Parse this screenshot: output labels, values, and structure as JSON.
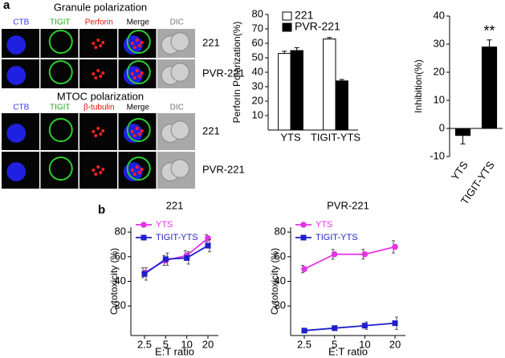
{
  "panel_labels": [
    "a",
    "b"
  ],
  "micrographs": [
    {
      "title": "Granule polarization",
      "columns": [
        "CTB",
        "TIGIT",
        "Perforin",
        "Merge",
        "DIC"
      ],
      "rows": [
        "221",
        "PVR-221"
      ]
    },
    {
      "title": "MTOC polarization",
      "columns": [
        "CTB",
        "TIGIT",
        "β-tubulin",
        "Merge",
        "DIC"
      ],
      "rows": [
        "221",
        "PVR-221"
      ]
    }
  ],
  "chart_data": [
    {
      "type": "bar",
      "y_label": "Perforin Polarization(%)",
      "categories": [
        "YTS",
        "TIGIT-YTS"
      ],
      "series": [
        {
          "name": "221",
          "color": "#ffffff",
          "values": [
            53,
            63
          ],
          "errors": [
            1.5,
            1
          ]
        },
        {
          "name": "PVR-221",
          "color": "#000000",
          "values": [
            55,
            34
          ],
          "errors": [
            2,
            1
          ]
        }
      ],
      "ylim": [
        0,
        80
      ],
      "yticks": [
        10,
        20,
        30,
        40,
        50,
        60,
        70,
        80
      ],
      "legend": "upper left"
    },
    {
      "type": "bar",
      "y_label": "Inhibition(%)",
      "categories": [
        "YTS",
        "TIGIT-YTS"
      ],
      "series": [
        {
          "color": "#000000",
          "values": [
            -2.5,
            29
          ],
          "errors": [
            3,
            2.5
          ]
        }
      ],
      "annotation": "**",
      "ylim": [
        -10,
        40
      ],
      "yticks": [
        -10,
        0,
        10,
        20,
        30,
        40
      ]
    },
    {
      "type": "line",
      "title": "221",
      "x_label": "E:T ratio",
      "y_label": "Cytotoxicity (%)",
      "categories": [
        "2.5",
        "5",
        "10",
        "20"
      ],
      "series": [
        {
          "name": "YTS",
          "color": "#e633e6",
          "marker": "circle",
          "values": [
            47,
            57,
            61,
            75
          ],
          "errors": [
            4,
            4,
            4,
            3
          ]
        },
        {
          "name": "TIGIT-YTS",
          "color": "#1f1fcc",
          "marker": "square",
          "values": [
            46,
            58,
            59,
            69
          ],
          "errors": [
            5,
            5,
            5,
            5
          ]
        }
      ],
      "ylim": [
        -4,
        84
      ],
      "yticks": [
        20,
        40,
        60,
        80
      ],
      "legend": "upper left"
    },
    {
      "type": "line",
      "title": "PVR-221",
      "x_label": "E:T ratio",
      "y_label": "Cytotoxicity (%)",
      "categories": [
        "2.5",
        "5",
        "10",
        "20"
      ],
      "series": [
        {
          "name": "YTS",
          "color": "#e633e6",
          "marker": "circle",
          "values": [
            50,
            62,
            62,
            68
          ],
          "errors": [
            3,
            4,
            4,
            5
          ]
        },
        {
          "name": "TIGIT-YTS",
          "color": "#1f1fcc",
          "marker": "square",
          "values": [
            0,
            2,
            4,
            6
          ],
          "errors": [
            1,
            2,
            3,
            5
          ]
        }
      ],
      "ylim": [
        -4,
        84
      ],
      "yticks": [
        20,
        40,
        60,
        80
      ],
      "legend": "upper left"
    }
  ]
}
